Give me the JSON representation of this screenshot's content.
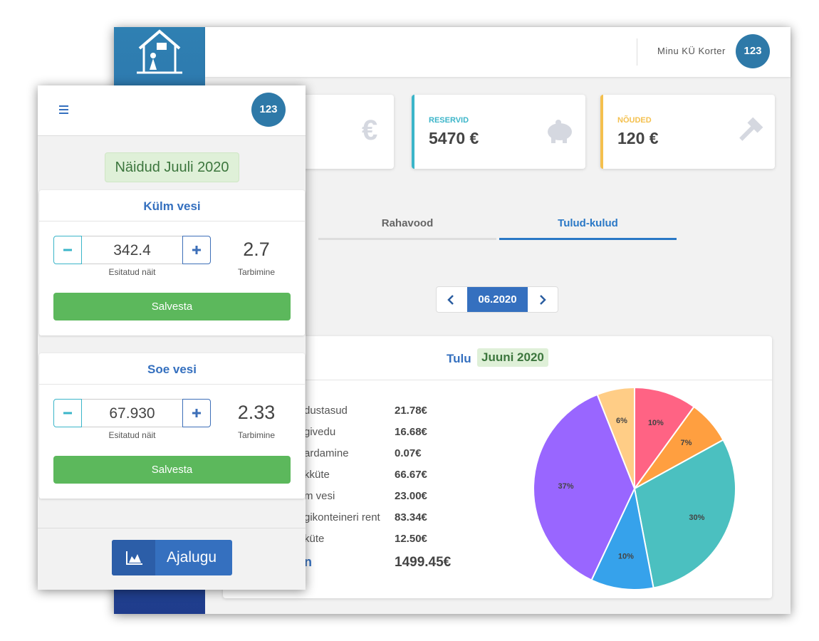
{
  "desktop": {
    "topbar": {
      "user": "Minu KÜ Korter",
      "badge": "123"
    },
    "cards": [
      {
        "icon": "€"
      },
      {
        "label": "RESERVID",
        "value": "5470 €"
      },
      {
        "label": "NÕUDED",
        "value": "120 €"
      }
    ],
    "tabs": [
      "Rahavood",
      "Tulud-kulud"
    ],
    "pager": {
      "current": "06.2020"
    },
    "income": {
      "title": "Tulu",
      "period": "Juuni 2020",
      "rows": [
        {
          "label": "dustasud",
          "amount": "21.78€"
        },
        {
          "label": "givedu",
          "amount": "16.68€"
        },
        {
          "label": "ardamine",
          "amount": "0.07€"
        },
        {
          "label": "kküte",
          "amount": "66.67€"
        },
        {
          "label": "m vesi",
          "amount": "23.00€"
        },
        {
          "label": "gikonteineri rent",
          "amount": "83.34€"
        },
        {
          "label": "küte",
          "amount": "12.50€"
        }
      ],
      "total": {
        "label": "n",
        "amount": "1499.45€"
      }
    }
  },
  "chart_data": {
    "type": "pie",
    "values": [
      10,
      7,
      30,
      10,
      37,
      6
    ],
    "value_labels": [
      "10%",
      "7%",
      "30%",
      "10%",
      "37%",
      "6%"
    ],
    "colors": [
      "#ff6384",
      "#ff9f40",
      "#4bc0c0",
      "#36a2eb",
      "#9966ff",
      "#ffcd86"
    ]
  },
  "mobile": {
    "badge": "123",
    "title": "Näidud Juuli 2020",
    "meters": [
      {
        "name": "Külm vesi",
        "reading": "342.4",
        "reading_label": "Esitatud näit",
        "consumption": "2.7",
        "consumption_label": "Tarbimine",
        "save": "Salvesta"
      },
      {
        "name": "Soe vesi",
        "reading": "67.930",
        "reading_label": "Esitatud näit",
        "consumption": "2.33",
        "consumption_label": "Tarbimine",
        "save": "Salvesta"
      }
    ],
    "history": "Ajalugu"
  }
}
